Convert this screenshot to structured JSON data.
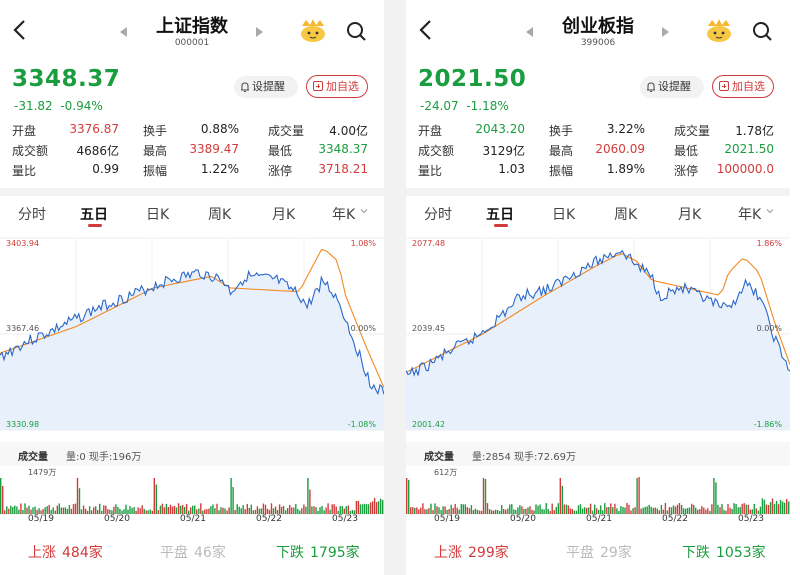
{
  "panels": [
    {
      "title": "上证指数",
      "code": "000001",
      "price": "3348.37",
      "change": "-31.82",
      "change_pct": "-0.94%",
      "remind_label": "设提醒",
      "add_label": "加自选",
      "stats": [
        [
          {
            "label": "开盘",
            "value": "3376.87",
            "color": "red"
          },
          {
            "label": "换手",
            "value": "0.88%",
            "color": "dark"
          },
          {
            "label": "成交量",
            "value": "4.00亿",
            "color": "dark"
          }
        ],
        [
          {
            "label": "成交额",
            "value": "4686亿",
            "color": "dark"
          },
          {
            "label": "最高",
            "value": "3389.47",
            "color": "red"
          },
          {
            "label": "最低",
            "value": "3348.37",
            "color": "green"
          }
        ],
        [
          {
            "label": "量比",
            "value": "0.99",
            "color": "dark"
          },
          {
            "label": "振幅",
            "value": "1.22%",
            "color": "dark"
          },
          {
            "label": "涨停",
            "value": "3718.21",
            "color": "red"
          }
        ]
      ],
      "tabs": [
        "分时",
        "五日",
        "日K",
        "周K",
        "月K",
        "年K"
      ],
      "active_tab": 1,
      "chart": {
        "top_price": "3403.94",
        "mid_price": "3367.46",
        "bottom_price": "3330.98",
        "top_pct": "1.08%",
        "mid_pct": "0.00%",
        "bottom_pct": "-1.08%"
      },
      "volume": {
        "label": "成交量",
        "info": "量:0 现手:196万",
        "max": "1479万"
      },
      "dates": [
        "05/19",
        "05/20",
        "05/21",
        "05/22",
        "05/23"
      ],
      "breadth": {
        "up_label": "上涨",
        "up": "484家",
        "flat_label": "平盘",
        "flat": "46家",
        "down_label": "下跌",
        "down": "1795家"
      }
    },
    {
      "title": "创业板指",
      "code": "399006",
      "price": "2021.50",
      "change": "-24.07",
      "change_pct": "-1.18%",
      "remind_label": "设提醒",
      "add_label": "加自选",
      "stats": [
        [
          {
            "label": "开盘",
            "value": "2043.20",
            "color": "green"
          },
          {
            "label": "换手",
            "value": "3.22%",
            "color": "dark"
          },
          {
            "label": "成交量",
            "value": "1.78亿",
            "color": "dark"
          }
        ],
        [
          {
            "label": "成交额",
            "value": "3129亿",
            "color": "dark"
          },
          {
            "label": "最高",
            "value": "2060.09",
            "color": "red"
          },
          {
            "label": "最低",
            "value": "2021.50",
            "color": "green"
          }
        ],
        [
          {
            "label": "量比",
            "value": "1.03",
            "color": "dark"
          },
          {
            "label": "振幅",
            "value": "1.89%",
            "color": "dark"
          },
          {
            "label": "涨停",
            "value": "100000.0",
            "color": "red"
          }
        ]
      ],
      "tabs": [
        "分时",
        "五日",
        "日K",
        "周K",
        "月K",
        "年K"
      ],
      "active_tab": 1,
      "chart": {
        "top_price": "2077.48",
        "mid_price": "2039.45",
        "bottom_price": "2001.42",
        "top_pct": "1.86%",
        "mid_pct": "0.00%",
        "bottom_pct": "-1.86%"
      },
      "volume": {
        "label": "成交量",
        "info": "量:2854 现手:72.69万",
        "max": "612万"
      },
      "dates": [
        "05/19",
        "05/20",
        "05/21",
        "05/22",
        "05/23"
      ],
      "breadth": {
        "up_label": "上涨",
        "up": "299家",
        "flat_label": "平盘",
        "flat": "29家",
        "down_label": "下跌",
        "down": "1053家"
      }
    }
  ],
  "colors": {
    "up": "#d23b3b",
    "down": "#1a9d3e",
    "price_line": "#2b67c9",
    "avg_line": "#f08a24"
  }
}
